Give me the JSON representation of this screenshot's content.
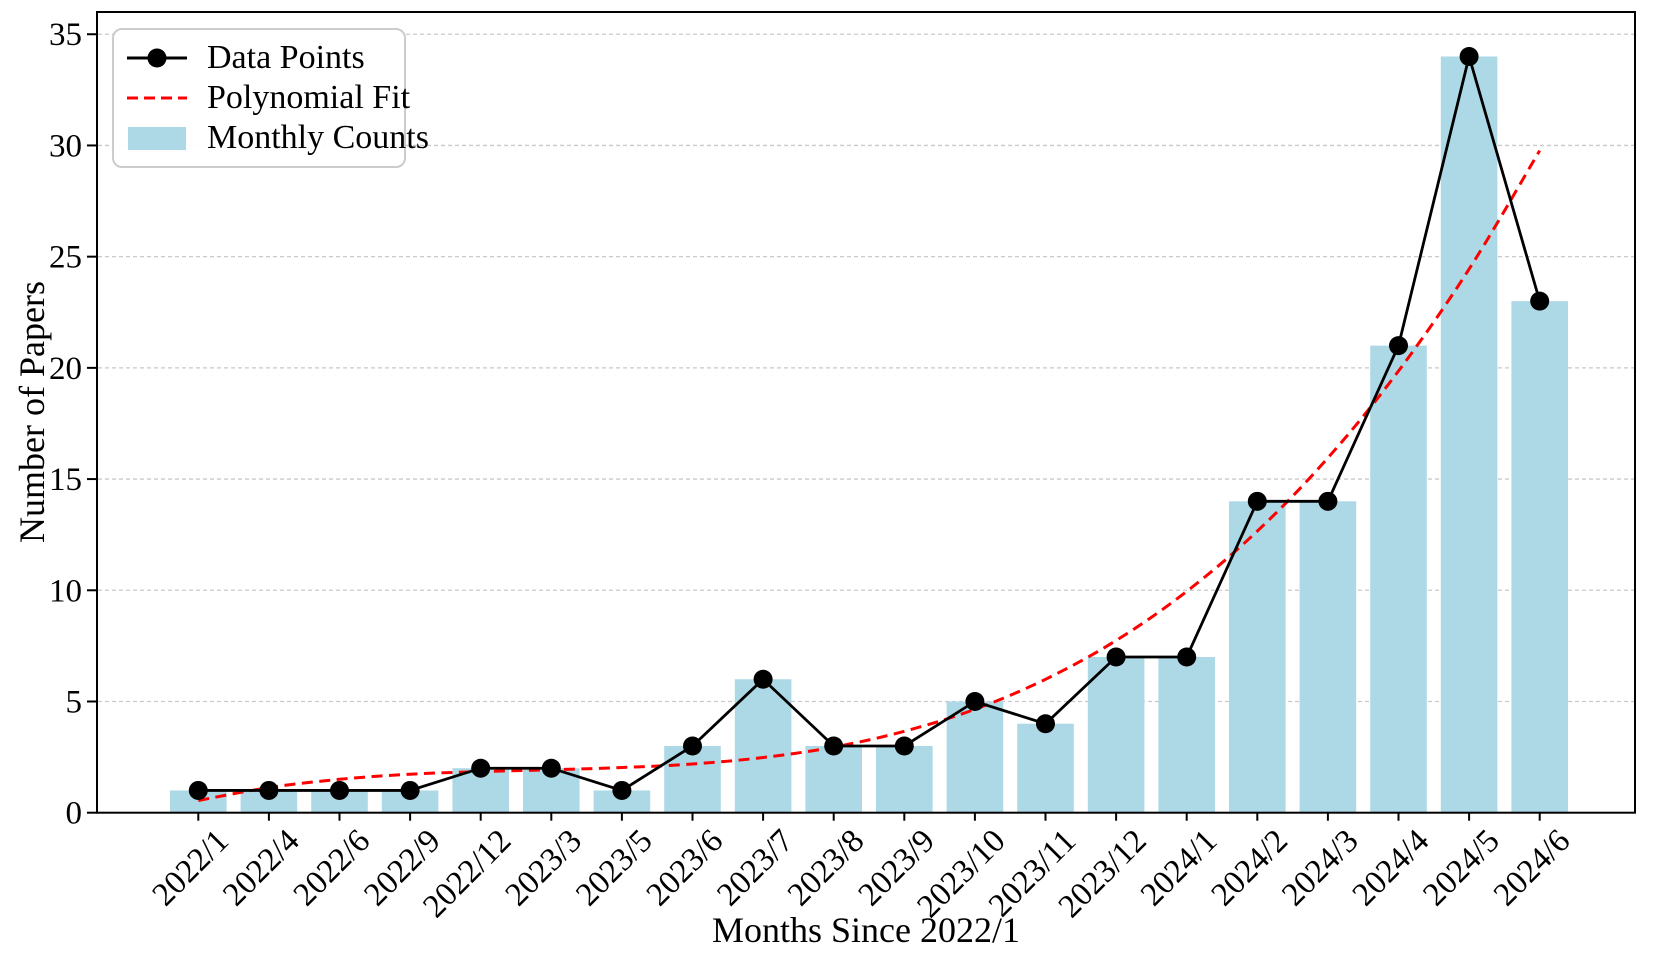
{
  "chart_data": {
    "type": "bar",
    "title": "",
    "xlabel": "Months Since 2022/1",
    "ylabel": "Number of Papers",
    "categories": [
      "2022/1",
      "2022/4",
      "2022/6",
      "2022/9",
      "2022/12",
      "2023/3",
      "2023/5",
      "2023/6",
      "2023/7",
      "2023/8",
      "2023/9",
      "2023/10",
      "2023/11",
      "2023/12",
      "2024/1",
      "2024/2",
      "2024/3",
      "2024/4",
      "2024/5",
      "2024/6"
    ],
    "series": [
      {
        "name": "Monthly Counts",
        "kind": "bar",
        "color": "#ADD8E6",
        "values": [
          1,
          1,
          1,
          1,
          2,
          2,
          1,
          3,
          6,
          3,
          3,
          5,
          4,
          7,
          7,
          14,
          14,
          21,
          34,
          23
        ]
      },
      {
        "name": "Data Points",
        "kind": "line",
        "color": "#000000",
        "marker": "circle",
        "values": [
          1,
          1,
          1,
          1,
          2,
          2,
          1,
          3,
          6,
          3,
          3,
          5,
          4,
          7,
          7,
          14,
          14,
          21,
          34,
          23
        ]
      },
      {
        "name": "Polynomial Fit",
        "kind": "dashed-line",
        "color": "#FF0000",
        "values": [
          0.55,
          1.13,
          1.5,
          1.73,
          1.85,
          1.93,
          2.03,
          2.19,
          2.48,
          2.95,
          3.66,
          4.65,
          6.0,
          7.74,
          9.95,
          12.66,
          15.95,
          19.86,
          24.44,
          29.77
        ]
      }
    ],
    "ylim": [
      0,
      36
    ],
    "yticks": [
      0,
      5,
      10,
      15,
      20,
      25,
      30,
      35
    ],
    "grid": "horizontal-dashed",
    "grid_color": "#c9c9c9",
    "axis_color": "#000000",
    "legend_position": "upper-left",
    "legend": [
      "Data Points",
      "Polynomial Fit",
      "Monthly Counts"
    ]
  }
}
